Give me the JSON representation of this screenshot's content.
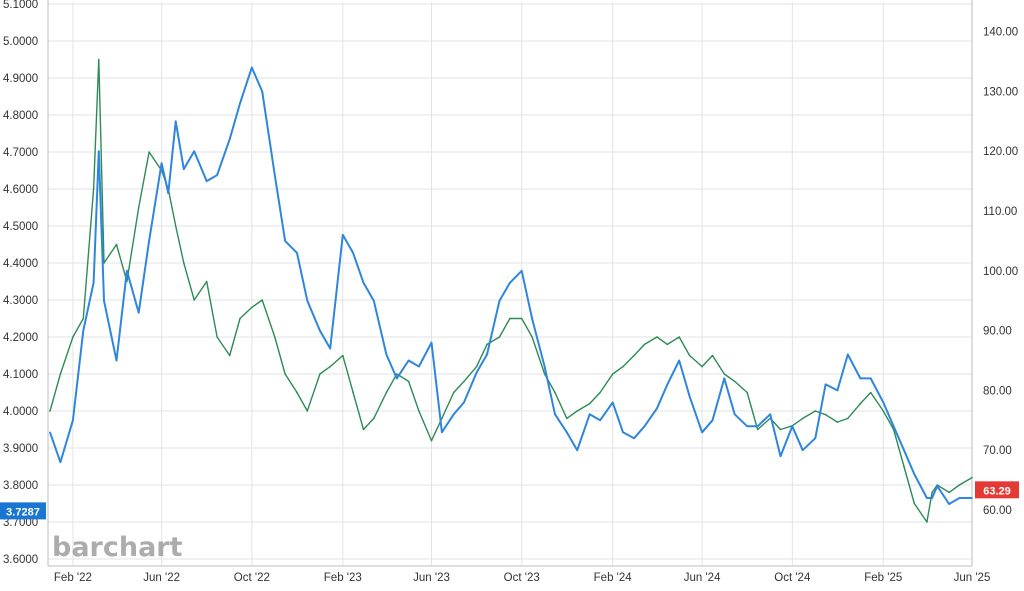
{
  "chart_data": {
    "type": "line",
    "watermark": "barchart",
    "x": [
      "2022-01-01",
      "2022-01-15",
      "2022-02-01",
      "2022-02-15",
      "2022-03-01",
      "2022-03-08",
      "2022-03-15",
      "2022-04-01",
      "2022-04-15",
      "2022-05-01",
      "2022-05-15",
      "2022-06-01",
      "2022-06-10",
      "2022-06-20",
      "2022-07-01",
      "2022-07-15",
      "2022-08-01",
      "2022-08-15",
      "2022-09-01",
      "2022-09-15",
      "2022-10-01",
      "2022-10-15",
      "2022-11-01",
      "2022-11-15",
      "2022-12-01",
      "2022-12-15",
      "2023-01-01",
      "2023-01-15",
      "2023-02-01",
      "2023-02-15",
      "2023-03-01",
      "2023-03-15",
      "2023-04-01",
      "2023-04-15",
      "2023-05-01",
      "2023-05-15",
      "2023-06-01",
      "2023-06-15",
      "2023-07-01",
      "2023-07-15",
      "2023-08-01",
      "2023-08-15",
      "2023-09-01",
      "2023-09-15",
      "2023-10-01",
      "2023-10-15",
      "2023-11-01",
      "2023-11-15",
      "2023-12-01",
      "2023-12-15",
      "2024-01-01",
      "2024-01-15",
      "2024-02-01",
      "2024-02-15",
      "2024-03-01",
      "2024-03-15",
      "2024-04-01",
      "2024-04-15",
      "2024-05-01",
      "2024-05-15",
      "2024-06-01",
      "2024-06-15",
      "2024-07-01",
      "2024-07-15",
      "2024-08-01",
      "2024-08-15",
      "2024-09-01",
      "2024-09-15",
      "2024-10-01",
      "2024-10-15",
      "2024-11-01",
      "2024-11-15",
      "2024-12-01",
      "2024-12-15",
      "2025-01-01",
      "2025-01-15",
      "2025-02-01",
      "2025-02-15",
      "2025-03-01",
      "2025-03-15",
      "2025-04-01",
      "2025-04-08",
      "2025-04-15",
      "2025-05-01",
      "2025-05-15",
      "2025-06-01"
    ],
    "series": [
      {
        "name": "",
        "axis": "left",
        "color": "#2e8b57",
        "values": [
          4.0,
          4.1,
          4.2,
          4.25,
          4.6,
          4.95,
          4.4,
          4.45,
          4.35,
          4.55,
          4.7,
          4.65,
          4.6,
          4.5,
          4.4,
          4.3,
          4.35,
          4.2,
          4.15,
          4.25,
          4.28,
          4.3,
          4.2,
          4.1,
          4.05,
          4.0,
          4.1,
          4.12,
          4.15,
          4.05,
          3.95,
          3.98,
          4.05,
          4.1,
          4.08,
          4.0,
          3.92,
          3.98,
          4.05,
          4.08,
          4.12,
          4.18,
          4.2,
          4.25,
          4.25,
          4.2,
          4.1,
          4.05,
          3.98,
          4.0,
          4.02,
          4.05,
          4.1,
          4.12,
          4.15,
          4.18,
          4.2,
          4.18,
          4.2,
          4.15,
          4.12,
          4.15,
          4.1,
          4.08,
          4.05,
          3.95,
          3.98,
          3.95,
          3.96,
          3.98,
          4.0,
          3.99,
          3.97,
          3.98,
          4.02,
          4.05,
          4.0,
          3.95,
          3.85,
          3.75,
          3.7,
          3.78,
          3.8,
          3.78,
          3.8,
          3.82
        ]
      },
      {
        "name": "",
        "axis": "right",
        "color": "#2f86dc",
        "values": [
          73,
          68,
          75,
          90,
          98,
          120,
          95,
          85,
          100,
          93,
          105,
          118,
          113,
          125,
          117,
          120,
          115,
          116,
          122,
          128,
          134,
          130,
          116,
          105,
          103,
          95,
          90,
          87,
          106,
          103,
          98,
          95,
          86,
          82,
          85,
          84,
          88,
          73,
          76,
          78,
          83,
          86,
          95,
          98,
          100,
          92,
          84,
          76,
          73,
          70,
          76,
          75,
          78,
          73,
          72,
          74,
          77,
          81,
          85,
          79,
          73,
          75,
          82,
          76,
          74,
          74,
          76,
          69,
          74,
          70,
          72,
          81,
          80,
          86,
          82,
          82,
          78,
          74,
          70,
          66,
          62,
          62,
          64,
          61,
          62,
          62
        ]
      }
    ],
    "y_left": {
      "min": 3.6,
      "max": 5.05,
      "ticks": [
        "3.6000",
        "3.7000",
        "3.8000",
        "3.9000",
        "4.0000",
        "4.1000",
        "4.2000",
        "4.3000",
        "4.4000",
        "4.5000",
        "4.6000",
        "4.7000",
        "4.8000",
        "4.9000",
        "5.0000",
        "5.1000"
      ]
    },
    "y_right": {
      "min": 55,
      "max": 145,
      "ticks": [
        "60.00",
        "70.00",
        "80.00",
        "90.00",
        "100.00",
        "110.00",
        "120.00",
        "130.00",
        "140.00"
      ]
    },
    "x_ticks": [
      "Feb '22",
      "Jun '22",
      "Oct '22",
      "Feb '23",
      "Jun '23",
      "Oct '23",
      "Feb '24",
      "Jun '24",
      "Oct '24",
      "Feb '25",
      "Jun '25"
    ],
    "badges": {
      "left": {
        "label": "3.7287",
        "value": 3.7287,
        "color": "#1976d2"
      },
      "right": {
        "label": "63.29",
        "value": 63.29,
        "color": "#e53935"
      }
    },
    "grid": true
  }
}
